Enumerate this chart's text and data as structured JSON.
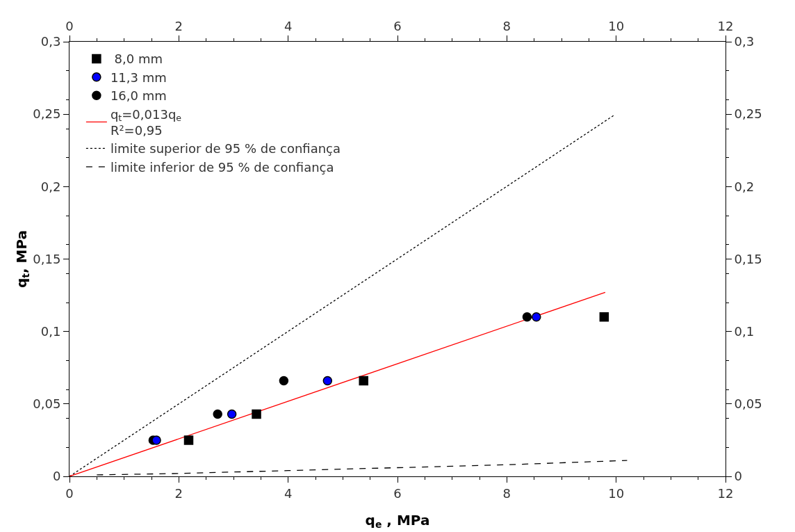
{
  "chart_data": {
    "type": "scatter",
    "xlabel": "q$_{e}$ , MPa",
    "ylabel": "q$_{t}$, MPa",
    "xlim": [
      0,
      12
    ],
    "ylim": [
      0,
      0.3
    ],
    "xticks": [
      0,
      2,
      4,
      6,
      8,
      10,
      12
    ],
    "x2lim": [
      0,
      12
    ],
    "x2ticks": [
      0,
      2,
      4,
      6,
      8,
      10,
      12
    ],
    "yticks": [
      0,
      {
        "value": 0.05,
        "label": "0,05"
      },
      {
        "value": 0.1,
        "label": "0,1"
      },
      {
        "value": 0.15,
        "label": "0,15"
      },
      {
        "value": 0.2,
        "label": "0,2"
      },
      {
        "value": 0.25,
        "label": "0,25"
      },
      {
        "value": 0.3,
        "label": "0,3"
      }
    ],
    "y2lim": [
      0,
      0.3
    ],
    "y2ticks": [
      0,
      {
        "value": 0.05,
        "label": "0,05"
      },
      {
        "value": 0.1,
        "label": "0,1"
      },
      {
        "value": 0.15,
        "label": "0,15"
      },
      {
        "value": 0.2,
        "label": "0,2"
      },
      {
        "value": 0.25,
        "label": "0,25"
      },
      {
        "value": 0.3,
        "label": "0,3"
      }
    ],
    "grid": false,
    "legend": "top left",
    "series": [
      {
        "name": " 8,0 mm",
        "marker": "square",
        "color": "#000000",
        "x": [
          2.18,
          3.42,
          5.38,
          9.78
        ],
        "values": [
          0.025,
          0.043,
          0.066,
          0.11
        ]
      },
      {
        "name": "11,3 mm",
        "marker": "circle",
        "color": "#0000ff",
        "x": [
          1.59,
          2.97,
          4.72,
          8.54
        ],
        "values": [
          0.025,
          0.043,
          0.066,
          0.11
        ]
      },
      {
        "name": "16,0 mm",
        "marker": "circle",
        "color": "#000000",
        "x": [
          1.53,
          2.71,
          3.92,
          8.37
        ],
        "values": [
          0.025,
          0.043,
          0.066,
          0.11
        ]
      },
      {
        "name": "q$_{t}$=0,013q$_{e}$\nR²=0,95",
        "type": "line",
        "line_style": "solid",
        "color": "#ff0000",
        "x": [
          0,
          9.8
        ],
        "values": [
          0,
          0.127
        ]
      },
      {
        "name": "limite superior de 95 % de confiança",
        "type": "line",
        "line_style": "dotted",
        "color": "#000000",
        "x": [
          0,
          9.95
        ],
        "values": [
          0,
          0.249
        ]
      },
      {
        "name": "limite inferior de 95 % de confiança",
        "type": "line",
        "line_style": "dashed",
        "color": "#000000",
        "x": [
          0.5,
          2,
          4,
          6,
          8,
          10.2
        ],
        "values": [
          0.001,
          0.002,
          0.004,
          0.006,
          0.008,
          0.011
        ]
      }
    ]
  }
}
